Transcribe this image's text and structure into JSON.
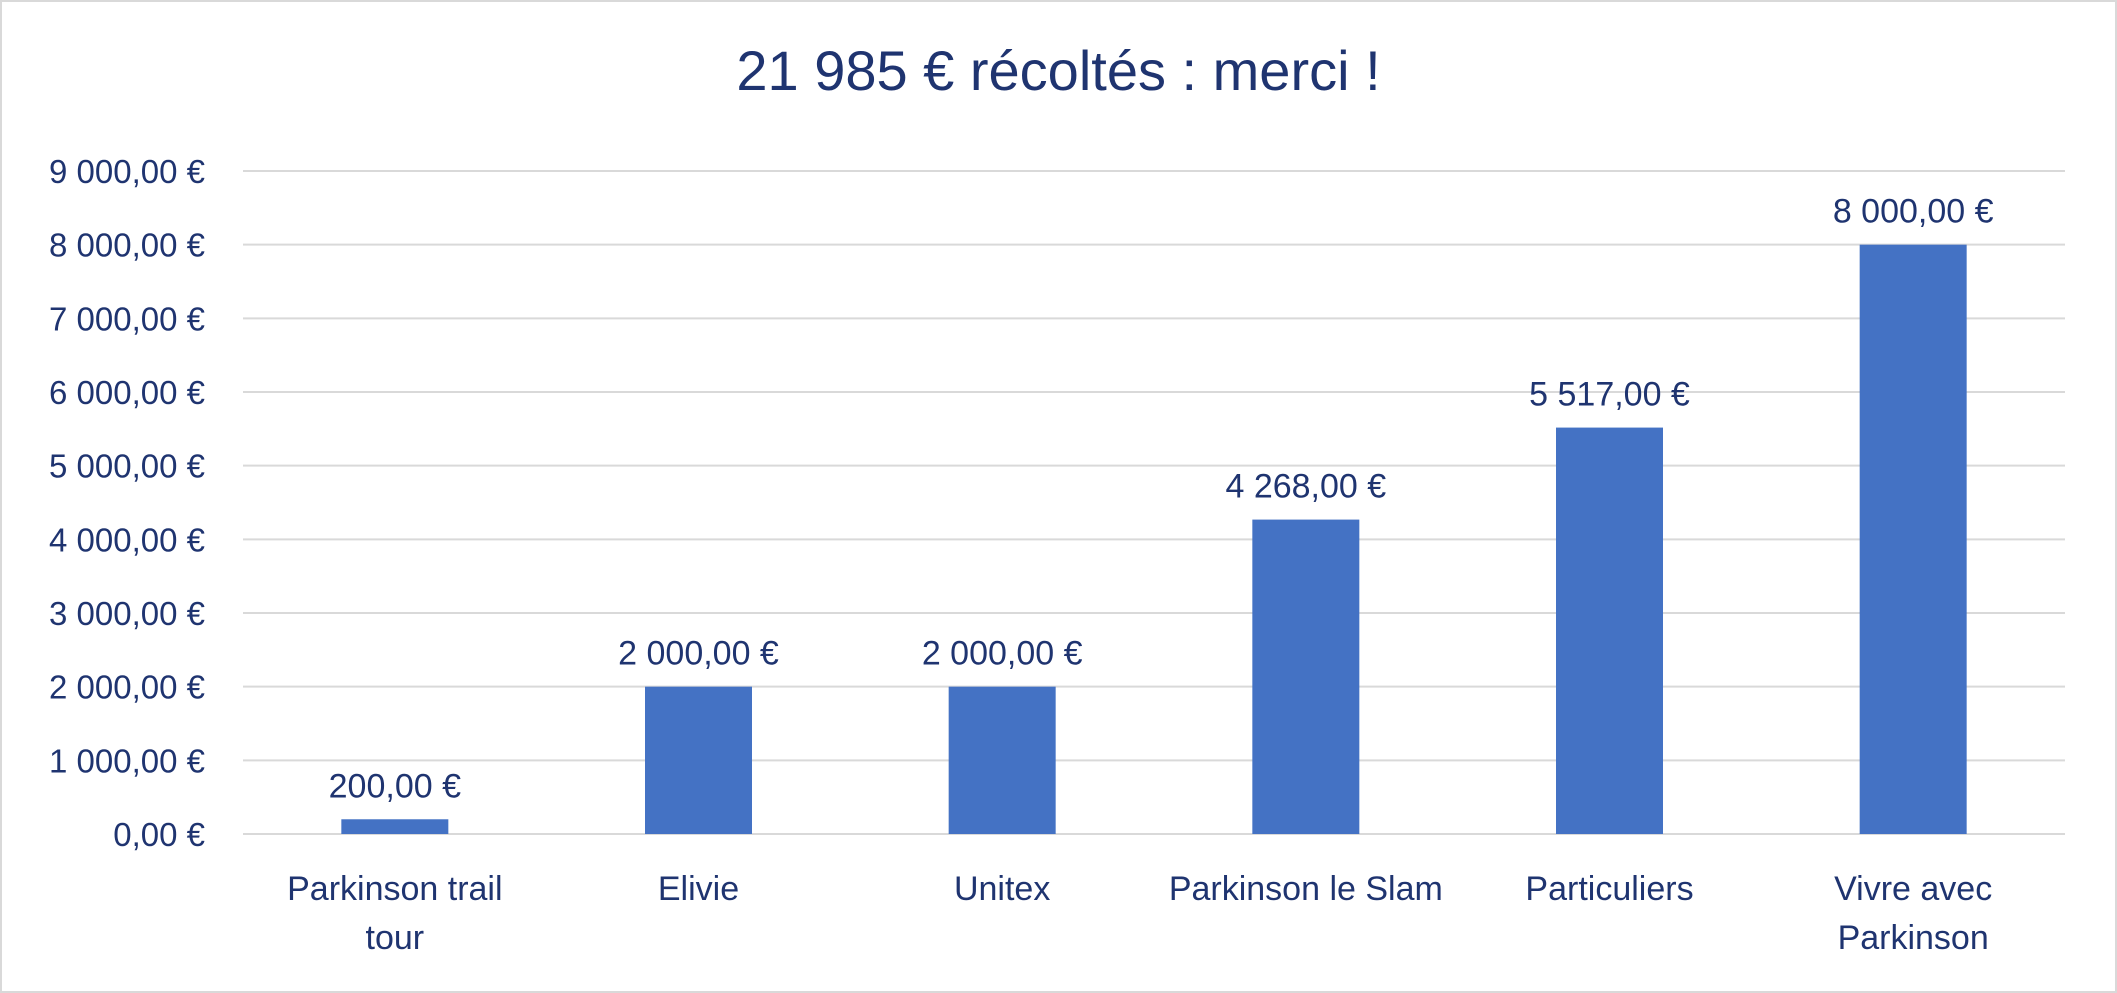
{
  "chart_data": {
    "type": "bar",
    "title": "21 985 € récoltés : merci !",
    "categories": [
      [
        "Parkinson trail",
        "tour"
      ],
      [
        "Elivie"
      ],
      [
        "Unitex"
      ],
      [
        "Parkinson le Slam"
      ],
      [
        "Particuliers"
      ],
      [
        "Vivre avec",
        "Parkinson"
      ]
    ],
    "values": [
      200,
      2000,
      2000,
      4268,
      5517,
      8000
    ],
    "data_labels": [
      "200,00 €",
      "2 000,00 €",
      "2 000,00 €",
      "4 268,00 €",
      "5 517,00 €",
      "8 000,00 €"
    ],
    "ylim": [
      0,
      9000
    ],
    "yticks": [
      0,
      1000,
      2000,
      3000,
      4000,
      5000,
      6000,
      7000,
      8000,
      9000
    ],
    "ytick_labels": [
      "0,00 €",
      "1 000,00 €",
      "2 000,00 €",
      "3 000,00 €",
      "4 000,00 €",
      "5 000,00 €",
      "6 000,00 €",
      "7 000,00 €",
      "8 000,00 €",
      "9 000,00 €"
    ],
    "xlabel": "",
    "ylabel": "",
    "grid": true,
    "legend": "none",
    "bar_color": "#4472c4",
    "grid_color": "#d9d9d9",
    "text_color": "#1f3470"
  }
}
